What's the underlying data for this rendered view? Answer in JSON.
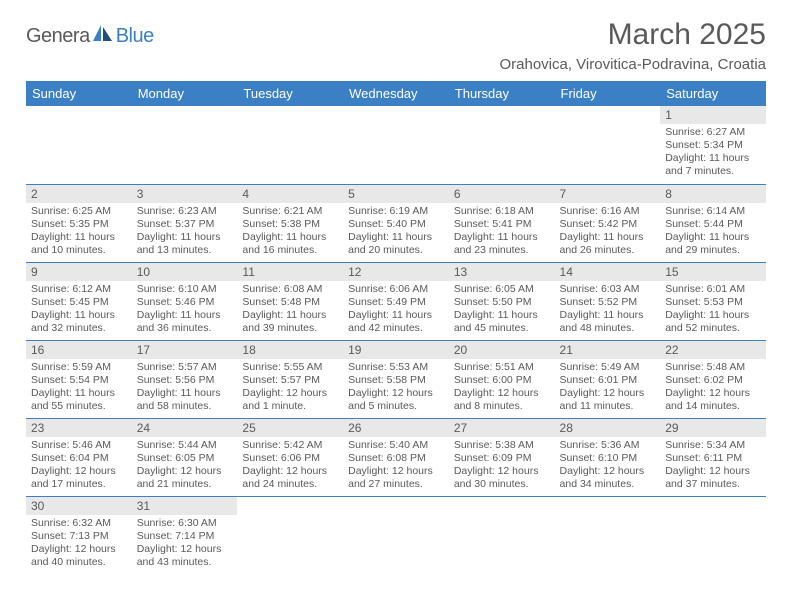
{
  "logo": {
    "text1": "Genera",
    "text2": "Blue"
  },
  "title": "March 2025",
  "location": "Orahovica, Virovitica-Podravina, Croatia",
  "colors": {
    "header_bg": "#3b7fc4",
    "header_text": "#ffffff",
    "daynum_bg": "#e8e8e8",
    "text": "#5a5a5a",
    "row_border": "#3b7fc4",
    "background": "#ffffff"
  },
  "typography": {
    "title_fontsize": 30,
    "location_fontsize": 15,
    "weekday_fontsize": 13,
    "daynum_fontsize": 12,
    "body_fontsize": 10.5
  },
  "weekdays": [
    "Sunday",
    "Monday",
    "Tuesday",
    "Wednesday",
    "Thursday",
    "Friday",
    "Saturday"
  ],
  "weeks": [
    [
      null,
      null,
      null,
      null,
      null,
      null,
      {
        "n": "1",
        "sunrise": "Sunrise: 6:27 AM",
        "sunset": "Sunset: 5:34 PM",
        "daylight": "Daylight: 11 hours and 7 minutes."
      }
    ],
    [
      {
        "n": "2",
        "sunrise": "Sunrise: 6:25 AM",
        "sunset": "Sunset: 5:35 PM",
        "daylight": "Daylight: 11 hours and 10 minutes."
      },
      {
        "n": "3",
        "sunrise": "Sunrise: 6:23 AM",
        "sunset": "Sunset: 5:37 PM",
        "daylight": "Daylight: 11 hours and 13 minutes."
      },
      {
        "n": "4",
        "sunrise": "Sunrise: 6:21 AM",
        "sunset": "Sunset: 5:38 PM",
        "daylight": "Daylight: 11 hours and 16 minutes."
      },
      {
        "n": "5",
        "sunrise": "Sunrise: 6:19 AM",
        "sunset": "Sunset: 5:40 PM",
        "daylight": "Daylight: 11 hours and 20 minutes."
      },
      {
        "n": "6",
        "sunrise": "Sunrise: 6:18 AM",
        "sunset": "Sunset: 5:41 PM",
        "daylight": "Daylight: 11 hours and 23 minutes."
      },
      {
        "n": "7",
        "sunrise": "Sunrise: 6:16 AM",
        "sunset": "Sunset: 5:42 PM",
        "daylight": "Daylight: 11 hours and 26 minutes."
      },
      {
        "n": "8",
        "sunrise": "Sunrise: 6:14 AM",
        "sunset": "Sunset: 5:44 PM",
        "daylight": "Daylight: 11 hours and 29 minutes."
      }
    ],
    [
      {
        "n": "9",
        "sunrise": "Sunrise: 6:12 AM",
        "sunset": "Sunset: 5:45 PM",
        "daylight": "Daylight: 11 hours and 32 minutes."
      },
      {
        "n": "10",
        "sunrise": "Sunrise: 6:10 AM",
        "sunset": "Sunset: 5:46 PM",
        "daylight": "Daylight: 11 hours and 36 minutes."
      },
      {
        "n": "11",
        "sunrise": "Sunrise: 6:08 AM",
        "sunset": "Sunset: 5:48 PM",
        "daylight": "Daylight: 11 hours and 39 minutes."
      },
      {
        "n": "12",
        "sunrise": "Sunrise: 6:06 AM",
        "sunset": "Sunset: 5:49 PM",
        "daylight": "Daylight: 11 hours and 42 minutes."
      },
      {
        "n": "13",
        "sunrise": "Sunrise: 6:05 AM",
        "sunset": "Sunset: 5:50 PM",
        "daylight": "Daylight: 11 hours and 45 minutes."
      },
      {
        "n": "14",
        "sunrise": "Sunrise: 6:03 AM",
        "sunset": "Sunset: 5:52 PM",
        "daylight": "Daylight: 11 hours and 48 minutes."
      },
      {
        "n": "15",
        "sunrise": "Sunrise: 6:01 AM",
        "sunset": "Sunset: 5:53 PM",
        "daylight": "Daylight: 11 hours and 52 minutes."
      }
    ],
    [
      {
        "n": "16",
        "sunrise": "Sunrise: 5:59 AM",
        "sunset": "Sunset: 5:54 PM",
        "daylight": "Daylight: 11 hours and 55 minutes."
      },
      {
        "n": "17",
        "sunrise": "Sunrise: 5:57 AM",
        "sunset": "Sunset: 5:56 PM",
        "daylight": "Daylight: 11 hours and 58 minutes."
      },
      {
        "n": "18",
        "sunrise": "Sunrise: 5:55 AM",
        "sunset": "Sunset: 5:57 PM",
        "daylight": "Daylight: 12 hours and 1 minute."
      },
      {
        "n": "19",
        "sunrise": "Sunrise: 5:53 AM",
        "sunset": "Sunset: 5:58 PM",
        "daylight": "Daylight: 12 hours and 5 minutes."
      },
      {
        "n": "20",
        "sunrise": "Sunrise: 5:51 AM",
        "sunset": "Sunset: 6:00 PM",
        "daylight": "Daylight: 12 hours and 8 minutes."
      },
      {
        "n": "21",
        "sunrise": "Sunrise: 5:49 AM",
        "sunset": "Sunset: 6:01 PM",
        "daylight": "Daylight: 12 hours and 11 minutes."
      },
      {
        "n": "22",
        "sunrise": "Sunrise: 5:48 AM",
        "sunset": "Sunset: 6:02 PM",
        "daylight": "Daylight: 12 hours and 14 minutes."
      }
    ],
    [
      {
        "n": "23",
        "sunrise": "Sunrise: 5:46 AM",
        "sunset": "Sunset: 6:04 PM",
        "daylight": "Daylight: 12 hours and 17 minutes."
      },
      {
        "n": "24",
        "sunrise": "Sunrise: 5:44 AM",
        "sunset": "Sunset: 6:05 PM",
        "daylight": "Daylight: 12 hours and 21 minutes."
      },
      {
        "n": "25",
        "sunrise": "Sunrise: 5:42 AM",
        "sunset": "Sunset: 6:06 PM",
        "daylight": "Daylight: 12 hours and 24 minutes."
      },
      {
        "n": "26",
        "sunrise": "Sunrise: 5:40 AM",
        "sunset": "Sunset: 6:08 PM",
        "daylight": "Daylight: 12 hours and 27 minutes."
      },
      {
        "n": "27",
        "sunrise": "Sunrise: 5:38 AM",
        "sunset": "Sunset: 6:09 PM",
        "daylight": "Daylight: 12 hours and 30 minutes."
      },
      {
        "n": "28",
        "sunrise": "Sunrise: 5:36 AM",
        "sunset": "Sunset: 6:10 PM",
        "daylight": "Daylight: 12 hours and 34 minutes."
      },
      {
        "n": "29",
        "sunrise": "Sunrise: 5:34 AM",
        "sunset": "Sunset: 6:11 PM",
        "daylight": "Daylight: 12 hours and 37 minutes."
      }
    ],
    [
      {
        "n": "30",
        "sunrise": "Sunrise: 6:32 AM",
        "sunset": "Sunset: 7:13 PM",
        "daylight": "Daylight: 12 hours and 40 minutes."
      },
      {
        "n": "31",
        "sunrise": "Sunrise: 6:30 AM",
        "sunset": "Sunset: 7:14 PM",
        "daylight": "Daylight: 12 hours and 43 minutes."
      },
      null,
      null,
      null,
      null,
      null
    ]
  ]
}
